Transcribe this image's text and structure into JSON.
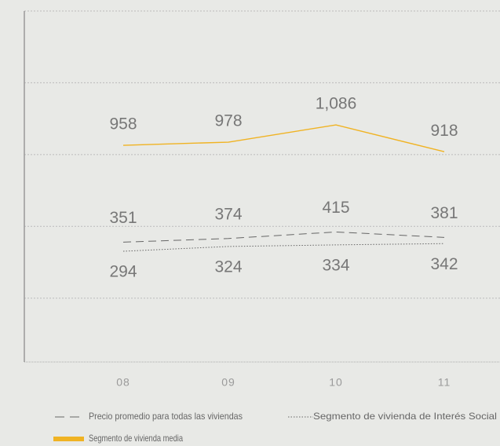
{
  "chart_data": {
    "type": "line",
    "categories": [
      "08",
      "09",
      "10",
      "11"
    ],
    "series": [
      {
        "name": "Segmento de vivienda media",
        "color": "#f0b323",
        "style": "solid",
        "values": [
          958,
          978,
          1086,
          918
        ],
        "value_labels": [
          "958",
          "978",
          "1,086",
          "918"
        ]
      },
      {
        "name": "Precio promedio para todas las viviendas",
        "color": "#666666",
        "style": "dashed",
        "values": [
          351,
          374,
          415,
          381
        ]
      },
      {
        "name": "Segmento de vivienda de Interés Social",
        "color": "#666666",
        "style": "dotted",
        "values": [
          294,
          324,
          334,
          342
        ]
      }
    ],
    "ylim": [
      -400,
      1800
    ],
    "yticks": [
      -400,
      0,
      450,
      900,
      1350,
      1800
    ],
    "grid": true
  }
}
